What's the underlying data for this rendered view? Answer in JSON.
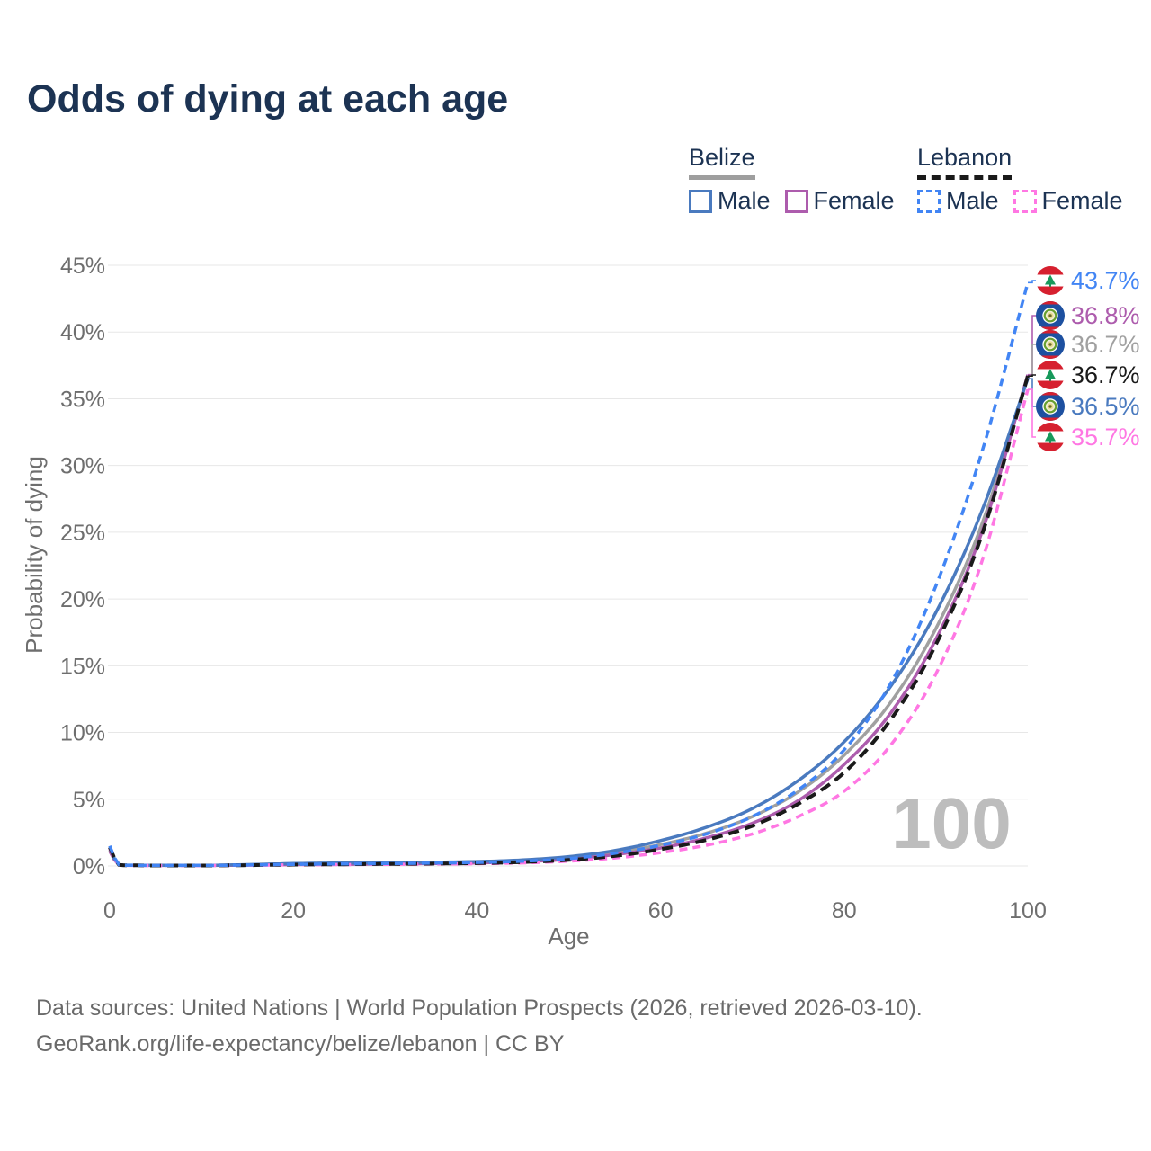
{
  "title": "Odds of dying at each age",
  "watermark": "100",
  "legend": {
    "groups": [
      {
        "name": "Belize",
        "line_style": "solid",
        "underline_color": "#9e9e9e",
        "items": [
          {
            "label": "Male",
            "color": "#4a7abf"
          },
          {
            "label": "Female",
            "color": "#ad5cad"
          }
        ]
      },
      {
        "name": "Lebanon",
        "line_style": "dashed",
        "underline_color": "#1a1a1a",
        "items": [
          {
            "label": "Male",
            "color": "#4285f4"
          },
          {
            "label": "Female",
            "color": "#ff77e3"
          }
        ]
      }
    ]
  },
  "footer": {
    "line1": "Data sources: United Nations | World Population Prospects (2026, retrieved 2026-03-10).",
    "line2": "GeoRank.org/life-expectancy/belize/lebanon | CC BY"
  },
  "chart_data": {
    "type": "line",
    "title": "Odds of dying at each age",
    "xlabel": "Age",
    "ylabel": "Probability of dying",
    "xlim": [
      0,
      100
    ],
    "ylim": [
      0,
      45
    ],
    "x_ticks": [
      0,
      20,
      40,
      60,
      80,
      100
    ],
    "x_tick_labels": [
      "0",
      "20",
      "40",
      "60",
      "80",
      "100"
    ],
    "y_ticks": [
      0,
      5,
      10,
      15,
      20,
      25,
      30,
      35,
      40,
      45
    ],
    "y_tick_labels": [
      "0%",
      "5%",
      "10%",
      "15%",
      "20%",
      "25%",
      "30%",
      "35%",
      "40%",
      "45%"
    ],
    "grid": "horizontal",
    "legend_position": "top-right",
    "x": [
      0,
      1,
      2,
      5,
      10,
      15,
      20,
      25,
      30,
      35,
      40,
      45,
      50,
      55,
      60,
      65,
      70,
      75,
      80,
      85,
      90,
      95,
      100
    ],
    "series": [
      {
        "country": "Belize",
        "group": "Both sexes",
        "color": "#a0a0a0",
        "dash": "solid",
        "values": [
          1.2,
          0.09,
          0.055,
          0.045,
          0.045,
          0.08,
          0.14,
          0.17,
          0.2,
          0.23,
          0.28,
          0.38,
          0.6,
          1.0,
          1.6,
          2.45,
          3.7,
          5.55,
          8.3,
          12.2,
          17.8,
          25.6,
          36.7
        ],
        "end_label": {
          "text": "36.7%",
          "flag": "belize"
        }
      },
      {
        "country": "Belize",
        "group": "Female",
        "color": "#ad5cad",
        "dash": "solid",
        "values": [
          1.1,
          0.08,
          0.05,
          0.04,
          0.04,
          0.06,
          0.1,
          0.12,
          0.15,
          0.18,
          0.23,
          0.32,
          0.5,
          0.85,
          1.35,
          2.1,
          3.2,
          4.9,
          7.6,
          11.4,
          17.0,
          25.0,
          36.8
        ],
        "end_label": {
          "text": "36.8%",
          "flag": "belize"
        }
      },
      {
        "country": "Belize",
        "group": "Male",
        "color": "#4a7abf",
        "dash": "solid",
        "values": [
          1.3,
          0.1,
          0.06,
          0.05,
          0.05,
          0.1,
          0.18,
          0.22,
          0.25,
          0.28,
          0.33,
          0.45,
          0.7,
          1.15,
          1.9,
          2.9,
          4.3,
          6.4,
          9.3,
          13.4,
          19.0,
          26.6,
          36.5
        ],
        "end_label": {
          "text": "36.5%",
          "flag": "belize"
        }
      },
      {
        "country": "Lebanon",
        "group": "Female",
        "color": "#ff77e3",
        "dash": "dashed",
        "values": [
          1.3,
          0.08,
          0.04,
          0.03,
          0.03,
          0.05,
          0.08,
          0.1,
          0.12,
          0.14,
          0.17,
          0.23,
          0.36,
          0.6,
          1.0,
          1.55,
          2.4,
          3.7,
          5.6,
          9.0,
          14.4,
          22.8,
          35.7
        ],
        "end_label": {
          "text": "35.7%",
          "flag": "lebanon"
        }
      },
      {
        "country": "Lebanon",
        "group": "Both sexes",
        "color": "#1a1a1a",
        "dash": "dashed",
        "values": [
          1.4,
          0.09,
          0.05,
          0.035,
          0.035,
          0.06,
          0.1,
          0.12,
          0.15,
          0.17,
          0.21,
          0.29,
          0.45,
          0.75,
          1.25,
          1.95,
          3.0,
          4.65,
          7.0,
          10.9,
          16.6,
          24.8,
          36.7
        ],
        "end_label": {
          "text": "36.7%",
          "flag": "lebanon"
        }
      },
      {
        "country": "Lebanon",
        "group": "Male",
        "color": "#4285f4",
        "dash": "dashed",
        "values": [
          1.5,
          0.1,
          0.05,
          0.04,
          0.04,
          0.07,
          0.12,
          0.15,
          0.18,
          0.21,
          0.26,
          0.36,
          0.55,
          0.95,
          1.55,
          2.4,
          3.7,
          5.7,
          8.7,
          13.6,
          21.0,
          31.0,
          43.7
        ],
        "end_label": {
          "text": "43.7%",
          "flag": "lebanon"
        }
      }
    ]
  }
}
